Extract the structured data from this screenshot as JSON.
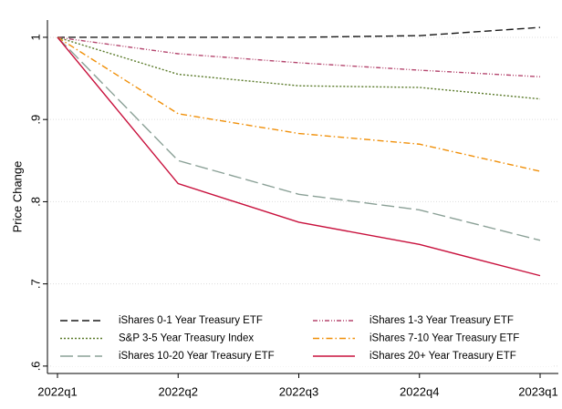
{
  "chart_data": {
    "type": "line",
    "y_label": "Price Change",
    "categories": [
      "2022q1",
      "2022q2",
      "2022q3",
      "2022q4",
      "2023q1"
    ],
    "series": [
      {
        "name": "iShares 0-1 Year Treasury ETF",
        "color": "#1a1a1a",
        "values": [
          1,
          1.0,
          1.0,
          1.002,
          1.012
        ]
      },
      {
        "name": "iShares 1-3 Year Treasury ETF",
        "color": "#b5476f",
        "values": [
          1,
          0.98,
          0.969,
          0.96,
          0.952
        ]
      },
      {
        "name": "S&P 3-5 Year Treasury Index",
        "color": "#5a7a2a",
        "values": [
          1,
          0.955,
          0.941,
          0.939,
          0.925
        ]
      },
      {
        "name": "iShares 7-10 Year Treasury ETF",
        "color": "#f0900a",
        "values": [
          1,
          0.907,
          0.883,
          0.87,
          0.837
        ]
      },
      {
        "name": "iShares 10-20 Year Treasury ETF",
        "color": "#8aa096",
        "values": [
          1,
          0.85,
          0.809,
          0.79,
          0.753
        ]
      },
      {
        "name": "iShares 20+ Year Treasury ETF",
        "color": "#c8103c",
        "values": [
          1,
          0.822,
          0.775,
          0.748,
          0.71
        ]
      }
    ],
    "ylim": [
      0.591,
      1.021
    ],
    "yticks": [
      {
        "value": 0.6,
        "label": ".6"
      },
      {
        "value": 0.7,
        "label": ".7"
      },
      {
        "value": 0.8,
        "label": ".8"
      },
      {
        "value": 0.9,
        "label": ".9"
      },
      1
    ],
    "grid": true,
    "legend_position": "bottom"
  }
}
